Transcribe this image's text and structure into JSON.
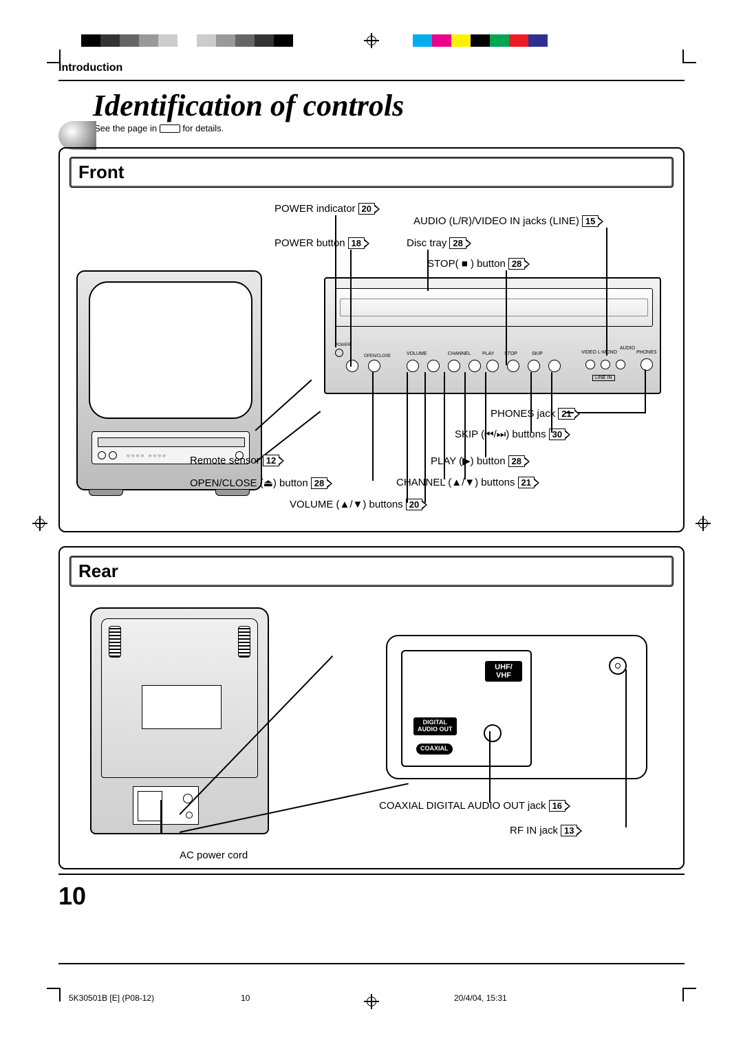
{
  "header_section": "Introduction",
  "title": "Identification of controls",
  "subnote_prefix": "See the page in ",
  "subnote_suffix": " for details.",
  "front": {
    "heading": "Front",
    "labels": {
      "power_indicator": "POWER indicator",
      "power_indicator_pg": "20",
      "audio_video_in": "AUDIO (L/R)/VIDEO IN jacks (LINE)",
      "audio_video_in_pg": "15",
      "power_button": "POWER button",
      "power_button_pg": "18",
      "disc_tray": "Disc tray",
      "disc_tray_pg": "28",
      "stop_button": "STOP( ■ ) button",
      "stop_button_pg": "28",
      "phones_jack": "PHONES jack",
      "phones_jack_pg": "21",
      "skip_buttons": "SKIP (⏮/⏭) buttons",
      "skip_buttons_pg": "30",
      "remote_sensor": "Remote sensor",
      "remote_sensor_pg": "12",
      "play_button": "PLAY (▶) button",
      "play_button_pg": "28",
      "open_close": "OPEN/CLOSE (⏏) button",
      "open_close_pg": "28",
      "channel_buttons": "CHANNEL (▲/▼) buttons",
      "channel_buttons_pg": "21",
      "volume_buttons": "VOLUME (▲/▼) buttons",
      "volume_buttons_pg": "20"
    },
    "panel_buttons": [
      "POWER",
      "OPEN/CLOSE",
      "VOLUME",
      "CHANNEL",
      "PLAY",
      "STOP",
      "SKIP",
      "VIDEO",
      "L-MONO",
      "AUDIO",
      "PHONES"
    ],
    "line_in": "LINE IN"
  },
  "rear": {
    "heading": "Rear",
    "uhf_vhf": "UHF/\nVHF",
    "digital_audio_out": "DIGITAL\nAUDIO OUT",
    "coaxial": "COAXIAL",
    "labels": {
      "coax_out": "COAXIAL DIGITAL AUDIO OUT jack",
      "coax_out_pg": "16",
      "rf_in": "RF IN jack",
      "rf_in_pg": "13",
      "ac_cord": "AC power cord"
    }
  },
  "page_number": "10",
  "footer": {
    "doc_id": "5K30501B [E] (P08-12)",
    "page": "10",
    "timestamp": "20/4/04, 15:31"
  },
  "colorbars": {
    "left": [
      "#000000",
      "#333333",
      "#666666",
      "#999999",
      "#cccccc",
      "#ffffff",
      "#cccccc",
      "#999999",
      "#666666",
      "#333333",
      "#000000"
    ],
    "right": [
      "#00aeef",
      "#ec008c",
      "#fff200",
      "#000000",
      "#00a651",
      "#ed1c24",
      "#2e3192",
      "#ffffff"
    ]
  }
}
